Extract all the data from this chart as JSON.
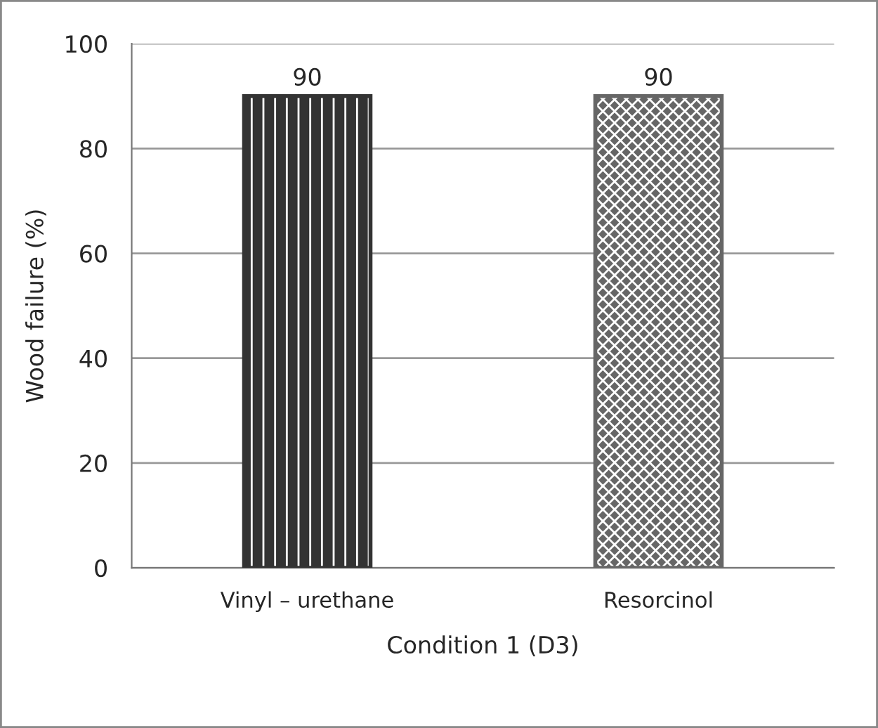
{
  "chart_data": {
    "type": "bar",
    "xlabel": "Condition 1 (D3)",
    "ylabel": "Wood failure (%)",
    "categories": [
      "Vinyl – urethane",
      "Resorcinol"
    ],
    "values": [
      90,
      90
    ],
    "colors": [
      "#333333",
      "#666666"
    ],
    "ylim": [
      0,
      100
    ],
    "yticks": [
      0,
      20,
      40,
      60,
      80,
      100
    ],
    "grid": "y",
    "data_labels": true
  }
}
